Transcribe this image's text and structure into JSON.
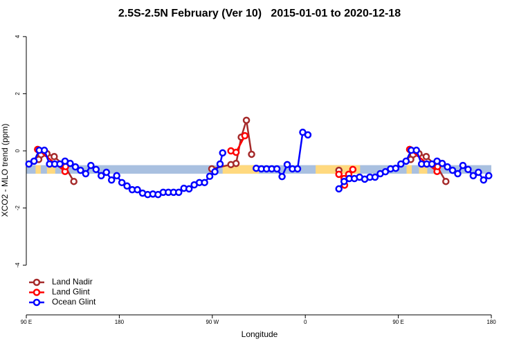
{
  "chart_data": {
    "type": "line",
    "title": "2.5S-2.5N February (Ver 10)   2015-01-01 to 2020-12-18",
    "x_label": "Longitude",
    "y_label": "XCO2 - MLO trend (ppm)",
    "xlim": [
      90,
      540
    ],
    "ylim": [
      -5.74,
      4.36
    ],
    "xticks": [
      {
        "value": 90,
        "label": "90 E"
      },
      180,
      {
        "value": 270,
        "label": "90 W"
      },
      {
        "value": 360,
        "label": "0"
      },
      {
        "value": 450,
        "label": "90 E"
      },
      {
        "value": 540,
        "label": "180"
      }
    ],
    "yticks": [
      -4,
      -2,
      0,
      2,
      4
    ],
    "legend": "bottom-left",
    "band": {
      "values": [
        -0.8,
        -0.5
      ],
      "color": "#a9c0e0"
    },
    "land_segments": {
      "color": "#ffd97f",
      "x": [
        [
          99,
          104
        ],
        [
          110,
          118
        ],
        [
          124,
          130
        ],
        [
          280,
          315
        ],
        [
          370,
          413
        ],
        [
          458,
          463
        ],
        [
          470,
          478
        ],
        [
          484,
          490
        ]
      ]
    },
    "series": [
      {
        "name": "Land Nadir",
        "color": "#a52a2a",
        "x": [
          101,
          102,
          110,
          117,
          127.5,
          136,
          null,
          269.5,
          288,
          293,
          298,
          303,
          308,
          null,
          392.5,
          null,
          461,
          462,
          470,
          477,
          487.5,
          496
        ],
        "values": [
          0.05,
          -0.3,
          -0.1,
          -0.2,
          -0.55,
          -1.07,
          null,
          -0.63,
          -0.48,
          -0.44,
          0.48,
          1.07,
          -0.12,
          null,
          -0.68,
          null,
          0.05,
          -0.3,
          -0.1,
          -0.2,
          -0.55,
          -1.07
        ]
      },
      {
        "name": "Land Glint",
        "color": "#ff0000",
        "x": [
          101,
          127.5,
          128,
          null,
          288,
          293,
          301.5,
          null,
          392.5,
          397.5,
          398,
          402,
          406,
          null,
          461,
          487.5,
          488
        ],
        "values": [
          0.05,
          -0.72,
          -0.55,
          null,
          0,
          -0.05,
          0.53,
          null,
          -0.82,
          -0.97,
          -1.2,
          -0.82,
          -0.65,
          null,
          0.05,
          -0.72,
          -0.55
        ]
      },
      {
        "name": "Ocean Glint",
        "color": "#0000ff",
        "x": [
          92.5,
          97.5,
          102.5,
          107.5,
          112.5,
          117.5,
          122.5,
          127.5,
          132.5,
          137.5,
          142.5,
          147.5,
          152.5,
          157.5,
          162.5,
          167.5,
          172.5,
          177.5,
          182.5,
          187.5,
          192.5,
          197.5,
          202.5,
          207.5,
          212.5,
          217.5,
          222.5,
          227.5,
          232.5,
          237.5,
          242.5,
          247.5,
          252.5,
          257.5,
          262.5,
          267.5,
          272.5,
          277.5,
          280,
          null,
          312.5,
          317.5,
          322.5,
          327.5,
          332.5,
          337.5,
          342.5,
          347.5,
          352.5,
          357.5,
          362.5,
          null,
          392.5,
          397.5,
          402.5,
          407.5,
          412.5,
          417.5,
          422.5,
          427.5,
          432.5,
          437.5,
          442.5,
          447.5,
          452.5,
          457.5,
          462.5,
          467.5,
          472.5,
          477.5,
          482.5,
          487.5,
          492.5,
          497.5,
          502.5,
          507.5,
          512.5,
          517.5,
          522.5,
          527.5,
          532.5,
          537.5
        ],
        "values": [
          -0.46,
          -0.36,
          0.02,
          0.02,
          -0.46,
          -0.46,
          -0.46,
          -0.36,
          -0.44,
          -0.56,
          -0.68,
          -0.8,
          -0.51,
          -0.65,
          -0.87,
          -0.75,
          -1.02,
          -0.87,
          -1.11,
          -1.23,
          -1.36,
          -1.36,
          -1.48,
          -1.53,
          -1.51,
          -1.53,
          -1.45,
          -1.45,
          -1.45,
          -1.45,
          -1.31,
          -1.33,
          -1.19,
          -1.11,
          -1.11,
          -0.89,
          -0.73,
          -0.46,
          -0.07,
          null,
          -0.61,
          -0.63,
          -0.63,
          -0.63,
          -0.63,
          -0.9,
          -0.48,
          -0.63,
          -0.63,
          0.65,
          0.56,
          null,
          -1.33,
          -1.07,
          -0.97,
          -0.97,
          -0.92,
          -0.99,
          -0.92,
          -0.92,
          -0.8,
          -0.73,
          -0.63,
          -0.61,
          -0.46,
          -0.36,
          0.02,
          0.02,
          -0.46,
          -0.46,
          -0.46,
          -0.36,
          -0.44,
          -0.56,
          -0.68,
          -0.8,
          -0.51,
          -0.65,
          -0.87,
          -0.75,
          -1.02,
          -0.87
        ]
      }
    ]
  }
}
